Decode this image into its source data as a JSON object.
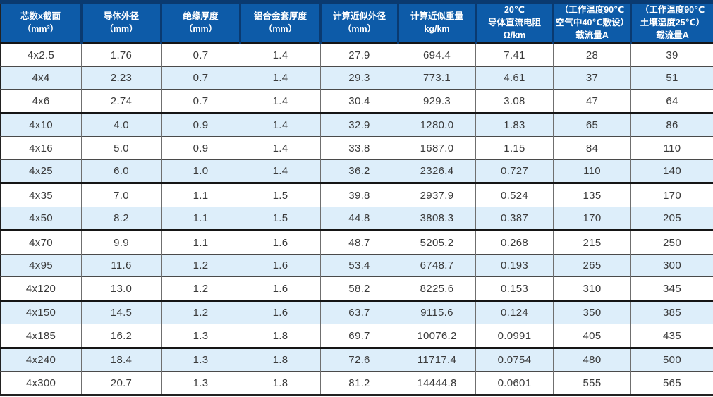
{
  "colors": {
    "header_bg": "#0d5ba8",
    "header_accent": "#0a3a70",
    "row_alt": "#ddeefa",
    "body_text": "#3a3a3a",
    "header_text": "#ffffff"
  },
  "table": {
    "columns": [
      {
        "id": "core-section",
        "lines": [
          "芯数x截面",
          "（mm²）"
        ]
      },
      {
        "id": "conductor-od",
        "lines": [
          "导体外径",
          "（mm）"
        ]
      },
      {
        "id": "insulation-thk",
        "lines": [
          "绝缘厚度",
          "（mm）"
        ]
      },
      {
        "id": "alloy-sheath-thk",
        "lines": [
          "铝合金套厚度",
          "（mm）"
        ]
      },
      {
        "id": "approx-od",
        "lines": [
          "计算近似外径",
          "（mm）"
        ]
      },
      {
        "id": "approx-weight",
        "lines": [
          "计算近似重量",
          "kg/km"
        ]
      },
      {
        "id": "dc-resistance",
        "lines": [
          "20℃",
          "导体直流电阻",
          "Ω/km"
        ]
      },
      {
        "id": "ampacity-air",
        "lines": [
          "（工作温度90℃",
          "空气中40℃敷设）",
          "载流量A"
        ]
      },
      {
        "id": "ampacity-soil",
        "lines": [
          "（工作温度90℃",
          "土壤温度25℃）",
          "载流量A"
        ]
      }
    ],
    "rows": [
      {
        "cells": [
          "4x2.5",
          "1.76",
          "0.7",
          "1.4",
          "27.9",
          "694.4",
          "7.41",
          "28",
          "39"
        ],
        "thick_bottom": false
      },
      {
        "cells": [
          "4x4",
          "2.23",
          "0.7",
          "1.4",
          "29.3",
          "773.1",
          "4.61",
          "37",
          "51"
        ],
        "thick_bottom": false
      },
      {
        "cells": [
          "4x6",
          "2.74",
          "0.7",
          "1.4",
          "30.4",
          "929.3",
          "3.08",
          "47",
          "64"
        ],
        "thick_bottom": true
      },
      {
        "cells": [
          "4x10",
          "4.0",
          "0.9",
          "1.4",
          "32.9",
          "1280.0",
          "1.83",
          "65",
          "86"
        ],
        "thick_bottom": false
      },
      {
        "cells": [
          "4x16",
          "5.0",
          "0.9",
          "1.4",
          "33.8",
          "1687.0",
          "1.15",
          "84",
          "110"
        ],
        "thick_bottom": false
      },
      {
        "cells": [
          "4x25",
          "6.0",
          "1.0",
          "1.4",
          "36.2",
          "2326.4",
          "0.727",
          "110",
          "140"
        ],
        "thick_bottom": true
      },
      {
        "cells": [
          "4x35",
          "7.0",
          "1.1",
          "1.5",
          "39.8",
          "2937.9",
          "0.524",
          "135",
          "170"
        ],
        "thick_bottom": false
      },
      {
        "cells": [
          "4x50",
          "8.2",
          "1.1",
          "1.5",
          "44.8",
          "3808.3",
          "0.387",
          "170",
          "205"
        ],
        "thick_bottom": true
      },
      {
        "cells": [
          "4x70",
          "9.9",
          "1.1",
          "1.6",
          "48.7",
          "5205.2",
          "0.268",
          "215",
          "250"
        ],
        "thick_bottom": false
      },
      {
        "cells": [
          "4x95",
          "11.6",
          "1.2",
          "1.6",
          "53.4",
          "6748.7",
          "0.193",
          "265",
          "300"
        ],
        "thick_bottom": false
      },
      {
        "cells": [
          "4x120",
          "13.0",
          "1.2",
          "1.6",
          "58.2",
          "8225.6",
          "0.153",
          "310",
          "345"
        ],
        "thick_bottom": true
      },
      {
        "cells": [
          "4x150",
          "14.5",
          "1.2",
          "1.6",
          "63.7",
          "9115.6",
          "0.124",
          "350",
          "385"
        ],
        "thick_bottom": false
      },
      {
        "cells": [
          "4x185",
          "16.2",
          "1.3",
          "1.8",
          "69.7",
          "10076.2",
          "0.0991",
          "405",
          "435"
        ],
        "thick_bottom": true
      },
      {
        "cells": [
          "4x240",
          "18.4",
          "1.3",
          "1.8",
          "72.6",
          "11717.4",
          "0.0754",
          "480",
          "500"
        ],
        "thick_bottom": false
      },
      {
        "cells": [
          "4x300",
          "20.7",
          "1.3",
          "1.8",
          "81.2",
          "14444.8",
          "0.0601",
          "555",
          "565"
        ],
        "thick_bottom": false
      }
    ]
  }
}
